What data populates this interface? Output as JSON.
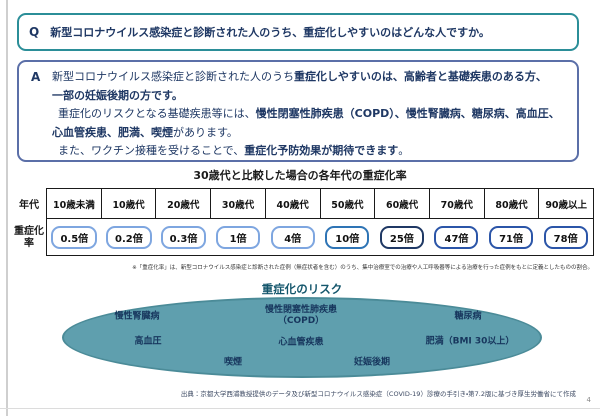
{
  "colors": {
    "q_border": "#2b8e98",
    "a_border": "#5b6fa8",
    "text_navy": "#1f3864",
    "ellipse_fill": "#5f9fae",
    "ellipse_border": "#4b8b98",
    "pill_light": "#7ea6e0",
    "pill_medium": "#2e74b5",
    "pill_dark": "#1f3864",
    "pill_strong": "#2b55a8"
  },
  "qa": {
    "q_label": "Q",
    "q_text": "新型コロナウイルス感染症と診断された人のうち、重症化しやすいのはどんな人ですか。",
    "a_label": "A",
    "a_lines": [
      {
        "indent": false,
        "runs": [
          {
            "text": "新型コロナウイルス感染症と診断された人のうち",
            "bold": false
          },
          {
            "text": "重症化しやすいのは、高齢者と基礎疾患のある方、",
            "bold": true
          }
        ]
      },
      {
        "indent": false,
        "runs": [
          {
            "text": "一部の妊娠後期の方です。",
            "bold": true
          }
        ]
      },
      {
        "indent": true,
        "runs": [
          {
            "text": "重症化のリスクとなる基礎疾患等には、",
            "bold": false
          },
          {
            "text": "慢性閉塞性肺疾患（COPD）、慢性腎臓病、糖尿病、高血圧、",
            "bold": true
          }
        ]
      },
      {
        "indent": false,
        "runs": [
          {
            "text": "心血管疾患、肥満、喫煙",
            "bold": true
          },
          {
            "text": "があります。",
            "bold": false
          }
        ]
      },
      {
        "indent": true,
        "runs": [
          {
            "text": "また、ワクチン接種を受けることで、",
            "bold": false
          },
          {
            "text": "重症化予防効果が期待できます",
            "bold": true
          },
          {
            "text": "。",
            "bold": false
          }
        ]
      }
    ]
  },
  "table": {
    "title": "30歳代と比較した場合の各年代の重症化率",
    "row_label_top": "年代",
    "row_label_bottom": "重症化率",
    "columns": [
      {
        "age": "10歳未満",
        "value": "0.5倍",
        "level": "light"
      },
      {
        "age": "10歳代",
        "value": "0.2倍",
        "level": "light"
      },
      {
        "age": "20歳代",
        "value": "0.3倍",
        "level": "light"
      },
      {
        "age": "30歳代",
        "value": "1倍",
        "level": "light"
      },
      {
        "age": "40歳代",
        "value": "4倍",
        "level": "light"
      },
      {
        "age": "50歳代",
        "value": "10倍",
        "level": "medium"
      },
      {
        "age": "60歳代",
        "value": "25倍",
        "level": "dark"
      },
      {
        "age": "70歳代",
        "value": "47倍",
        "level": "strong"
      },
      {
        "age": "80歳代",
        "value": "71倍",
        "level": "strong"
      },
      {
        "age": "90歳以上",
        "value": "78倍",
        "level": "strong"
      }
    ],
    "footnote": "※「重症化率」は、新型コロナウイルス感染症と診断された症例（無症状者を含む）のうち、集中治療室での治療や人工呼吸器等による治療を行った症例をもとに定義としたものの割合。"
  },
  "risk": {
    "title": "重症化のリスク",
    "labels": {
      "ckd": "慢性腎臓病",
      "copd": "慢性閉塞性肺疾患\n（COPD）",
      "diabetes": "糖尿病",
      "hypertension": "高血圧",
      "cardio": "心血管疾患",
      "obesity": "肥満（BMI 30以上）",
      "smoking": "喫煙",
      "pregnancy": "妊娠後期"
    }
  },
  "footer": {
    "source": "出典：京都大学西浦教授提供のデータ及び新型コロナウイルス感染症（COVID-19）診療の手引き・第7.2版に基づき厚生労働省にて作成",
    "page_number": "4"
  }
}
